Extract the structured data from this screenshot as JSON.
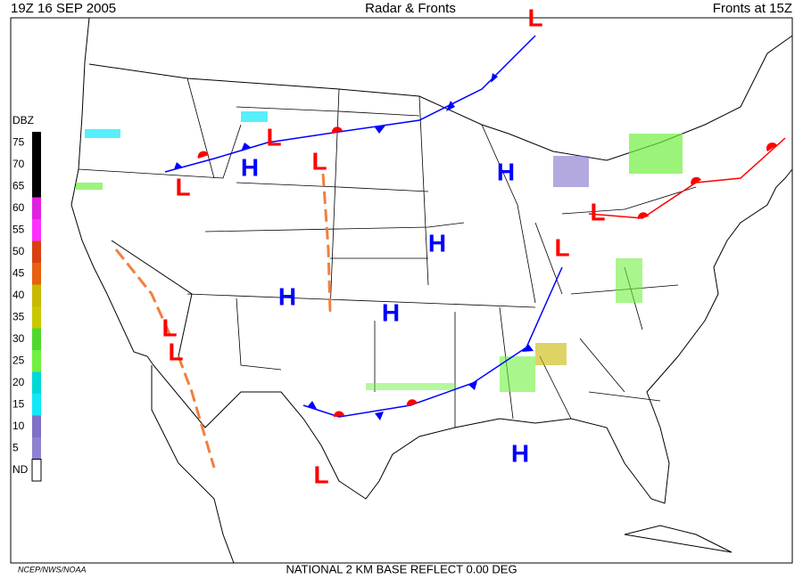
{
  "header": {
    "left": "19Z  16 SEP  2005",
    "center": "Radar & Fronts",
    "right": "Fronts at 15Z"
  },
  "legend": {
    "title": "DBZ",
    "items": [
      {
        "label": "75",
        "color": "#000000"
      },
      {
        "label": "70",
        "color": "#000000"
      },
      {
        "label": "65",
        "color": "#000000"
      },
      {
        "label": "60",
        "color": "#e020e0"
      },
      {
        "label": "55",
        "color": "#ff30ff"
      },
      {
        "label": "50",
        "color": "#d84010"
      },
      {
        "label": "45",
        "color": "#e86010"
      },
      {
        "label": "40",
        "color": "#c8b800"
      },
      {
        "label": "35",
        "color": "#c8c800"
      },
      {
        "label": "30",
        "color": "#50d830"
      },
      {
        "label": "25",
        "color": "#70f040"
      },
      {
        "label": "20",
        "color": "#00d8d8"
      },
      {
        "label": "15",
        "color": "#10e8f8"
      },
      {
        "label": "10",
        "color": "#8070c8"
      },
      {
        "label": "5",
        "color": "#9080d0"
      },
      {
        "label": "ND",
        "color": "#ffffff"
      }
    ]
  },
  "pressure_centers": [
    "L",
    "L",
    "H",
    "L",
    "L",
    "H",
    "H",
    "L",
    "L",
    "H",
    "H",
    "L",
    "L",
    "H",
    "L"
  ],
  "footer": {
    "credit": "NCEP/NWS/NOAA",
    "product": "NATIONAL 2 KM BASE REFLECT 0.00 DEG"
  }
}
